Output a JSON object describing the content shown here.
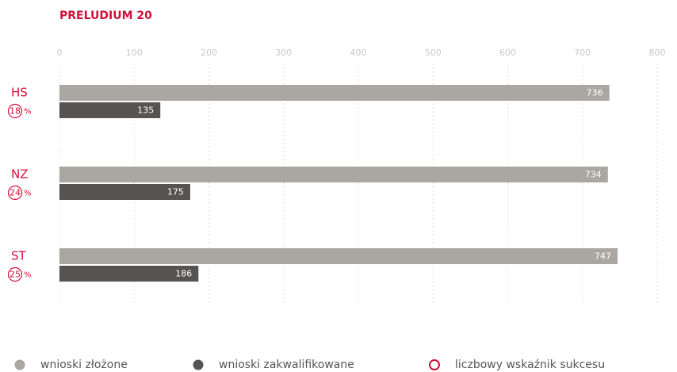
{
  "chart_data": {
    "type": "bar",
    "orientation": "horizontal",
    "title": "PRELUDIUM 20",
    "categories": [
      "HS",
      "NZ",
      "ST"
    ],
    "series": [
      {
        "name": "wnioski złożone",
        "color": "#aaa6a1",
        "values": [
          736,
          734,
          747
        ]
      },
      {
        "name": "wnioski zakwalifikowane",
        "color": "#555452",
        "values": [
          135,
          175,
          186
        ]
      },
      {
        "name": "liczbowy wskaźnik sukcesu",
        "color": "#d0103a",
        "values": [
          18,
          24,
          25
        ],
        "unit": "%"
      }
    ],
    "xlim": [
      0,
      800
    ],
    "xticks": [
      0,
      100,
      200,
      300,
      400,
      500,
      600,
      700,
      800
    ],
    "grid": true,
    "legend": "bottom"
  }
}
